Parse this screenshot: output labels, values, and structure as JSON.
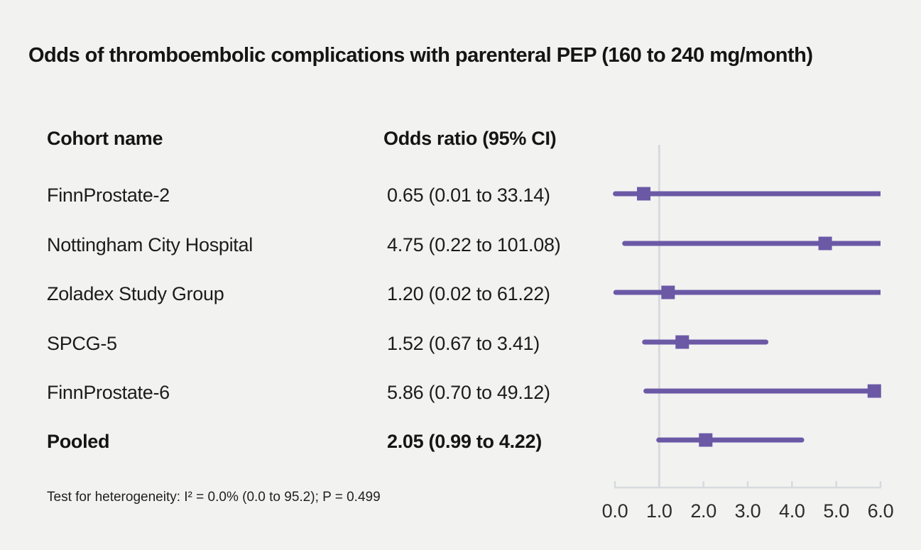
{
  "title": "Odds of thromboembolic complications with parenteral PEP (160 to 240 mg/month)",
  "table": {
    "col1_header": "Cohort name",
    "col2_header": "Odds ratio (95% CI)"
  },
  "footnote": "Test for heterogeneity: I² = 0.0% (0.0 to 95.2); P = 0.499",
  "colors": {
    "marker": "#6b59a6",
    "axis": "#d7dade",
    "background": "#f2f2f1",
    "text": "#1c1c1c"
  },
  "chart_data": {
    "type": "forest",
    "title": "Odds of thromboembolic complications with parenteral PEP (160 to 240 mg/month)",
    "xlabel": "",
    "xlim": [
      0.0,
      6.0
    ],
    "xticks": [
      "0.0",
      "1.0",
      "2.0",
      "3.0",
      "4.0",
      "5.0",
      "6.0"
    ],
    "reference_line": 1.0,
    "grid": false,
    "rows": [
      {
        "label": "FinnProstate-2",
        "or": 0.65,
        "lo": 0.01,
        "hi": 33.14,
        "display": "0.65 (0.01 to 33.14)",
        "bold": false
      },
      {
        "label": "Nottingham City Hospital",
        "or": 4.75,
        "lo": 0.22,
        "hi": 101.08,
        "display": "4.75 (0.22 to 101.08)",
        "bold": false
      },
      {
        "label": "Zoladex Study Group",
        "or": 1.2,
        "lo": 0.02,
        "hi": 61.22,
        "display": "1.20 (0.02 to 61.22)",
        "bold": false
      },
      {
        "label": "SPCG-5",
        "or": 1.52,
        "lo": 0.67,
        "hi": 3.41,
        "display": "1.52 (0.67 to 3.41)",
        "bold": false
      },
      {
        "label": "FinnProstate-6",
        "or": 5.86,
        "lo": 0.7,
        "hi": 49.12,
        "display": "5.86 (0.70 to 49.12)",
        "bold": false
      },
      {
        "label": "Pooled",
        "or": 2.05,
        "lo": 0.99,
        "hi": 4.22,
        "display": "2.05 (0.99 to 4.22)",
        "bold": true
      }
    ]
  }
}
